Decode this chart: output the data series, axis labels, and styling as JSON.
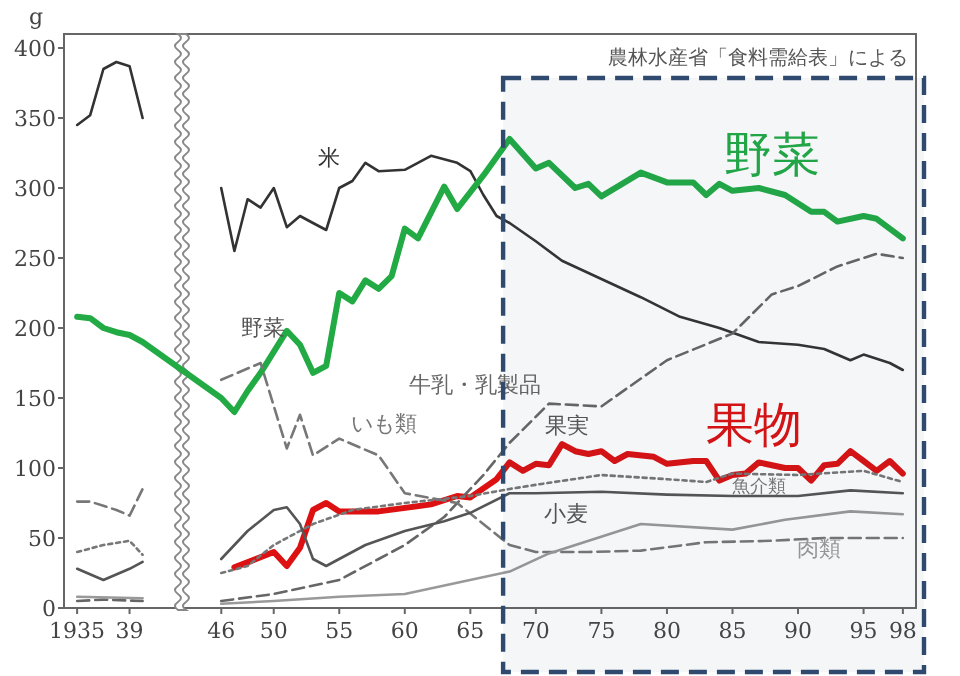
{
  "chart_data": {
    "type": "line",
    "ylabel": "g",
    "xlim": [
      1934,
      1999
    ],
    "ylim": [
      0,
      410
    ],
    "xticks": [
      1935,
      {
        "value": 1939,
        "label": "39"
      },
      {
        "value": 1946,
        "label": "46"
      },
      {
        "value": 1950,
        "label": "50"
      },
      {
        "value": 1955,
        "label": "55"
      },
      {
        "value": 1960,
        "label": "60"
      },
      {
        "value": 1965,
        "label": "65"
      },
      {
        "value": 1970,
        "label": "70"
      },
      {
        "value": 1975,
        "label": "75"
      },
      {
        "value": 1980,
        "label": "80"
      },
      {
        "value": 1985,
        "label": "85"
      },
      {
        "value": 1990,
        "label": "90"
      },
      {
        "value": 1995,
        "label": "95"
      },
      {
        "value": 1998,
        "label": "98"
      }
    ],
    "yticks": [
      0,
      50,
      100,
      150,
      200,
      250,
      300,
      350,
      400
    ],
    "grid": false,
    "series": [
      {
        "name": "米",
        "color": "#333333",
        "line_style": "solid",
        "x": [
          1935,
          1936,
          1937,
          1938,
          1939,
          1940,
          1943,
          1946,
          1947,
          1948,
          1949,
          1950,
          1951,
          1952,
          1953,
          1954,
          1955,
          1956,
          1957,
          1958,
          1960,
          1962,
          1964,
          1965,
          1966,
          1967,
          1968,
          1970,
          1972,
          1975,
          1978,
          1981,
          1984,
          1987,
          1990,
          1992,
          1994,
          1995,
          1997,
          1998
        ],
        "values": [
          345,
          352,
          385,
          390,
          387,
          350,
          null,
          300,
          255,
          292,
          286,
          300,
          272,
          280,
          275,
          270,
          300,
          305,
          318,
          312,
          313,
          323,
          318,
          312,
          295,
          280,
          275,
          262,
          248,
          235,
          222,
          208,
          200,
          190,
          188,
          185,
          177,
          181,
          175,
          170
        ]
      },
      {
        "name": "野菜",
        "color": "#22aa44",
        "line_style": "solid",
        "x": [
          1935,
          1936,
          1937,
          1938,
          1939,
          1940,
          1946,
          1947,
          1948,
          1949,
          1951,
          1952,
          1953,
          1954,
          1955,
          1956,
          1957,
          1958,
          1959,
          1960,
          1961,
          1963,
          1964,
          1966,
          1968,
          1970,
          1971,
          1973,
          1974,
          1975,
          1978,
          1980,
          1982,
          1983,
          1984,
          1985,
          1987,
          1989,
          1991,
          1992,
          1993,
          1995,
          1996,
          1998
        ],
        "values": [
          208,
          207,
          200,
          197,
          195,
          190,
          150,
          140,
          155,
          168,
          198,
          188,
          168,
          173,
          225,
          219,
          234,
          228,
          237,
          271,
          264,
          301,
          285,
          309,
          335,
          314,
          318,
          300,
          303,
          294,
          311,
          304,
          304,
          295,
          303,
          298,
          300,
          295,
          283,
          283,
          276,
          280,
          278,
          264
        ]
      },
      {
        "name": "果物",
        "color": "#dd1111",
        "line_style": "solid",
        "x": [
          1947,
          1950,
          1951,
          1952,
          1953,
          1954,
          1955,
          1958,
          1962,
          1964,
          1965,
          1967,
          1968,
          1969,
          1970,
          1971,
          1972,
          1973,
          1974,
          1975,
          1976,
          1977,
          1979,
          1980,
          1982,
          1983,
          1984,
          1985,
          1986,
          1987,
          1989,
          1990,
          1991,
          1992,
          1993,
          1994,
          1995,
          1996,
          1997,
          1998
        ],
        "values": [
          29,
          40,
          30,
          43,
          70,
          75,
          69,
          69,
          74,
          80,
          79,
          92,
          104,
          98,
          103,
          102,
          117,
          112,
          110,
          112,
          105,
          110,
          108,
          103,
          105,
          105,
          91,
          95,
          96,
          104,
          100,
          100,
          91,
          102,
          103,
          112,
          105,
          98,
          105,
          96
        ]
      },
      {
        "name": "牛乳・乳製品",
        "color": "#666666",
        "line_style": "dashed",
        "x": [
          1935,
          1937,
          1940,
          1943,
          1946,
          1950,
          1955,
          1958,
          1960,
          1963,
          1966,
          1968,
          1971,
          1975,
          1980,
          1985,
          1988,
          1990,
          1993,
          1996,
          1998
        ],
        "values": [
          5,
          6,
          5,
          null,
          5,
          10,
          20,
          35,
          45,
          65,
          95,
          118,
          146,
          144,
          177,
          196,
          224,
          230,
          244,
          253,
          250
        ]
      },
      {
        "name": "いも類",
        "color": "#777777",
        "line_style": "dashed",
        "x": [
          1935,
          1936,
          1937,
          1938,
          1939,
          1940,
          1943,
          1946,
          1949,
          1951,
          1952,
          1953,
          1955,
          1958,
          1960,
          1964,
          1968,
          1970,
          1974,
          1978,
          1983,
          1988,
          1992,
          1998
        ],
        "values": [
          76,
          76,
          73,
          70,
          66,
          85,
          null,
          163,
          175,
          114,
          138,
          109,
          121,
          109,
          82,
          75,
          45,
          40,
          40,
          41,
          47,
          48,
          50,
          50
        ]
      },
      {
        "name": "魚介類",
        "color": "#777777",
        "line_style": "dotted",
        "x": [
          1935,
          1937,
          1939,
          1940,
          1943,
          1946,
          1948,
          1950,
          1953,
          1956,
          1960,
          1965,
          1968,
          1970,
          1975,
          1980,
          1983,
          1985,
          1990,
          1995,
          1998
        ],
        "values": [
          40,
          45,
          48,
          38,
          null,
          25,
          30,
          45,
          60,
          70,
          75,
          80,
          85,
          88,
          95,
          92,
          90,
          96,
          95,
          98,
          90
        ]
      },
      {
        "name": "小麦",
        "color": "#555555",
        "line_style": "solid",
        "x": [
          1935,
          1937,
          1939,
          1940,
          1943,
          1946,
          1948,
          1950,
          1951,
          1952,
          1953,
          1954,
          1955,
          1957,
          1960,
          1963,
          1965,
          1968,
          1970,
          1975,
          1980,
          1985,
          1990,
          1994,
          1998
        ],
        "values": [
          28,
          20,
          28,
          33,
          null,
          35,
          55,
          70,
          72,
          60,
          35,
          30,
          35,
          45,
          55,
          62,
          68,
          82,
          82,
          83,
          81,
          80,
          80,
          84,
          82
        ]
      },
      {
        "name": "肉類",
        "color": "#999999",
        "line_style": "solid",
        "x": [
          1935,
          1940,
          1943,
          1946,
          1950,
          1955,
          1960,
          1964,
          1968,
          1971,
          1978,
          1985,
          1989,
          1994,
          1998
        ],
        "values": [
          8,
          7,
          null,
          3,
          5,
          8,
          10,
          18,
          26,
          39,
          60,
          56,
          63,
          69,
          67
        ]
      }
    ],
    "annotations": [
      "農林水産省「食料需給表」による",
      {
        "text": "野菜",
        "x": 1953,
        "y": 172
      },
      {
        "text": "果実",
        "x": 1975,
        "y": 112
      }
    ],
    "bands": [
      {
        "axis": "x",
        "from": 1967.5,
        "to": 1999,
        "color": "#2f4a6e"
      }
    ]
  }
}
